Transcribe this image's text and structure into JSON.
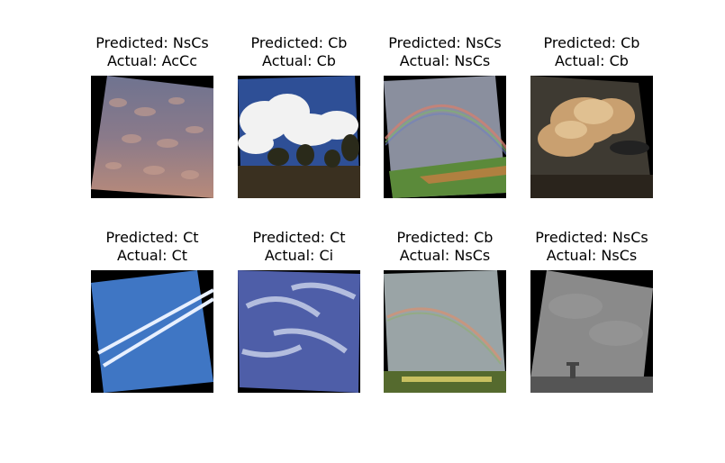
{
  "grid": {
    "rows": [
      [
        {
          "predicted": "Predicted: NsCs",
          "actual": "Actual: AcCc",
          "scene": "altocumulus-sunset"
        },
        {
          "predicted": "Predicted: Cb",
          "actual": "Actual: Cb",
          "scene": "cumulonimbus-trees"
        },
        {
          "predicted": "Predicted: NsCs",
          "actual": "Actual: NsCs",
          "scene": "rainbow-field"
        },
        {
          "predicted": "Predicted: Cb",
          "actual": "Actual: Cb",
          "scene": "cumulonimbus-golden"
        }
      ],
      [
        {
          "predicted": "Predicted: Ct",
          "actual": "Actual: Ct",
          "scene": "contrails"
        },
        {
          "predicted": "Predicted: Ct",
          "actual": "Actual: Ci",
          "scene": "cirrus-wisps"
        },
        {
          "predicted": "Predicted: Cb",
          "actual": "Actual: NsCs",
          "scene": "rainbow-grey-sky"
        },
        {
          "predicted": "Predicted: NsCs",
          "actual": "Actual: NsCs",
          "scene": "overcast-grey"
        }
      ]
    ]
  }
}
